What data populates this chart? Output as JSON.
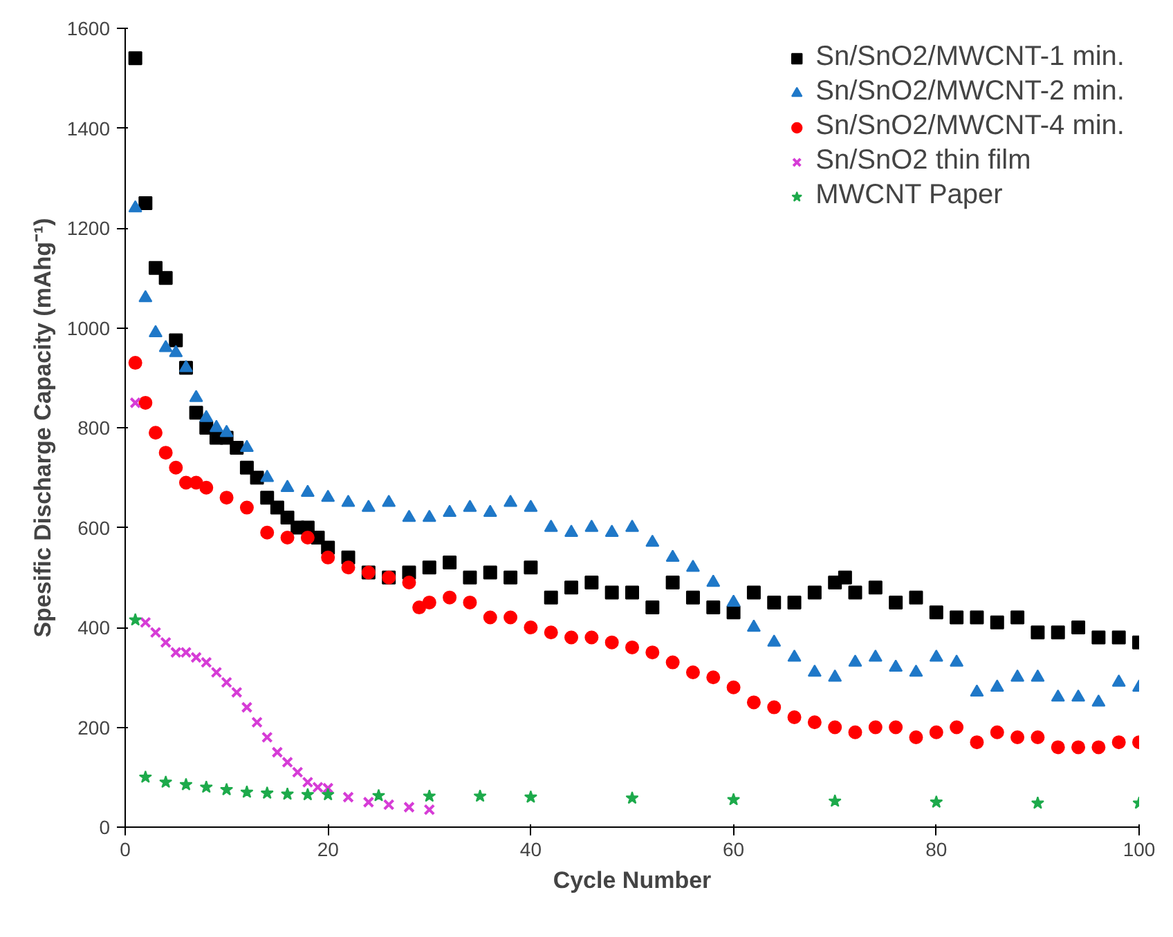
{
  "chart_data": {
    "type": "scatter",
    "xlabel": "Cycle Number",
    "ylabel": "Spesific Discharge Capacity (mAhg⁻¹)",
    "xlim": [
      0,
      100
    ],
    "xticks": [
      0,
      20,
      40,
      60,
      80,
      100
    ],
    "ylim": [
      0,
      1600
    ],
    "yticks": [
      0,
      200,
      400,
      600,
      800,
      1000,
      1200,
      1400,
      1600
    ],
    "grid": false,
    "legend": "top right",
    "series": [
      {
        "name": "Sn/SnO2/MWCNT-1 min.",
        "color": "#000000",
        "marker": "square",
        "x": [
          1,
          2,
          3,
          4,
          5,
          6,
          7,
          8,
          9,
          10,
          11,
          12,
          13,
          14,
          15,
          16,
          17,
          18,
          19,
          20,
          22,
          24,
          26,
          28,
          30,
          32,
          34,
          36,
          38,
          40,
          42,
          44,
          46,
          48,
          50,
          52,
          54,
          56,
          58,
          60,
          62,
          64,
          66,
          68,
          70,
          71,
          72,
          74,
          76,
          78,
          80,
          82,
          84,
          86,
          88,
          90,
          92,
          94,
          96,
          98,
          100
        ],
        "values": [
          1540,
          1250,
          1120,
          1100,
          975,
          920,
          830,
          800,
          780,
          780,
          760,
          720,
          700,
          660,
          640,
          620,
          600,
          600,
          580,
          560,
          540,
          510,
          500,
          510,
          520,
          530,
          500,
          510,
          500,
          520,
          460,
          480,
          490,
          470,
          470,
          440,
          490,
          460,
          440,
          430,
          470,
          450,
          450,
          470,
          490,
          500,
          470,
          480,
          450,
          460,
          430,
          420,
          420,
          410,
          420,
          390,
          390,
          400,
          380,
          380,
          370
        ]
      },
      {
        "name": "Sn/SnO2/MWCNT-2 min.",
        "color": "#1f78c8",
        "marker": "triangle",
        "x": [
          1,
          2,
          3,
          4,
          5,
          6,
          7,
          8,
          9,
          10,
          12,
          14,
          16,
          18,
          20,
          22,
          24,
          26,
          28,
          30,
          32,
          34,
          36,
          38,
          40,
          42,
          44,
          46,
          48,
          50,
          52,
          54,
          56,
          58,
          60,
          62,
          64,
          66,
          68,
          70,
          72,
          74,
          76,
          78,
          80,
          82,
          84,
          86,
          88,
          90,
          92,
          94,
          96,
          98,
          100
        ],
        "values": [
          1240,
          1060,
          990,
          960,
          950,
          920,
          860,
          820,
          800,
          790,
          760,
          700,
          680,
          670,
          660,
          650,
          640,
          650,
          620,
          620,
          630,
          640,
          630,
          650,
          640,
          600,
          590,
          600,
          590,
          600,
          570,
          540,
          520,
          490,
          450,
          400,
          370,
          340,
          310,
          300,
          330,
          340,
          320,
          310,
          340,
          330,
          270,
          280,
          300,
          300,
          260,
          260,
          250,
          290,
          280
        ]
      },
      {
        "name": "Sn/SnO2/MWCNT-4 min.",
        "color": "#ff0000",
        "marker": "circle",
        "x": [
          1,
          2,
          3,
          4,
          5,
          6,
          7,
          8,
          10,
          12,
          14,
          16,
          18,
          20,
          22,
          24,
          26,
          28,
          29,
          30,
          32,
          34,
          36,
          38,
          40,
          42,
          44,
          46,
          48,
          50,
          52,
          54,
          56,
          58,
          60,
          62,
          64,
          66,
          68,
          70,
          72,
          74,
          76,
          78,
          80,
          82,
          84,
          86,
          88,
          90,
          92,
          94,
          96,
          98,
          100
        ],
        "values": [
          930,
          850,
          790,
          750,
          720,
          690,
          690,
          680,
          660,
          640,
          590,
          580,
          580,
          540,
          520,
          510,
          500,
          490,
          440,
          450,
          460,
          450,
          420,
          420,
          400,
          390,
          380,
          380,
          370,
          360,
          350,
          330,
          310,
          300,
          280,
          250,
          240,
          220,
          210,
          200,
          190,
          200,
          200,
          180,
          190,
          200,
          170,
          190,
          180,
          180,
          160,
          160,
          160,
          170,
          170
        ]
      },
      {
        "name": "Sn/SnO2 thin film",
        "color": "#d63cd6",
        "marker": "cross",
        "x": [
          1,
          2,
          3,
          4,
          5,
          6,
          7,
          8,
          9,
          10,
          11,
          12,
          13,
          14,
          15,
          16,
          17,
          18,
          19,
          20,
          22,
          24,
          26,
          28,
          30
        ],
        "values": [
          850,
          410,
          390,
          370,
          350,
          350,
          340,
          330,
          310,
          290,
          270,
          240,
          210,
          180,
          150,
          130,
          110,
          90,
          80,
          78,
          60,
          50,
          45,
          40,
          35
        ]
      },
      {
        "name": "MWCNT Paper",
        "color": "#1daa4b",
        "marker": "star",
        "x": [
          1,
          2,
          4,
          6,
          8,
          10,
          12,
          14,
          16,
          18,
          20,
          25,
          30,
          35,
          40,
          50,
          60,
          70,
          80,
          90,
          100
        ],
        "values": [
          415,
          100,
          90,
          85,
          80,
          75,
          70,
          68,
          66,
          65,
          65,
          63,
          62,
          62,
          60,
          58,
          55,
          52,
          50,
          48,
          48
        ]
      }
    ]
  }
}
